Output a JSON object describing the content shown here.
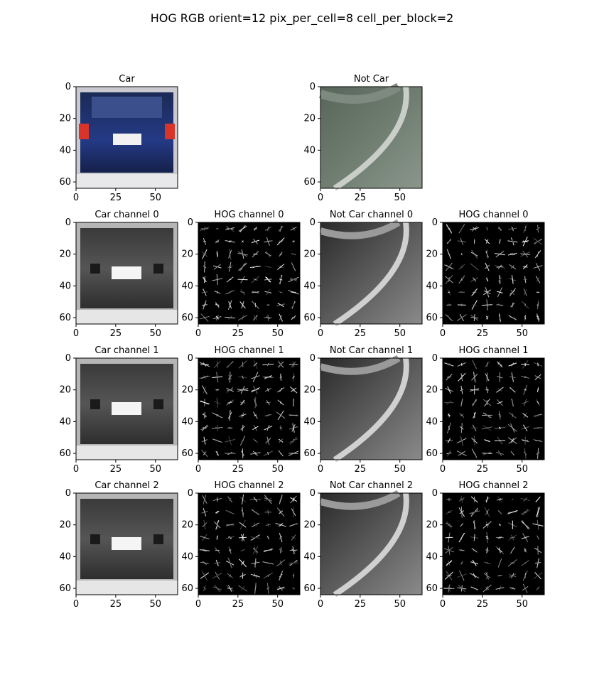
{
  "figure": {
    "suptitle": "HOG RGB orient=12 pix_per_cell=8 cell_per_block=2"
  },
  "chart_data": {
    "type": "image-grid",
    "rows": 4,
    "cols": 4,
    "image_extent": [
      0,
      64,
      0,
      64
    ],
    "xticks": [
      "0",
      "25",
      "50"
    ],
    "yticks": [
      "0",
      "20",
      "40",
      "60"
    ],
    "panels": [
      {
        "title": "Car",
        "row": 0,
        "col": 0,
        "kind": "car-rgb"
      },
      {
        "title": "Not Car",
        "row": 0,
        "col": 2,
        "kind": "notcar-rgb"
      },
      {
        "title": "Car channel 0",
        "row": 1,
        "col": 0,
        "kind": "car-gray",
        "channel": 0
      },
      {
        "title": "HOG channel 0",
        "row": 1,
        "col": 1,
        "kind": "car-hog",
        "channel": 0
      },
      {
        "title": "Not Car channel 0",
        "row": 1,
        "col": 2,
        "kind": "notcar-gray",
        "channel": 0
      },
      {
        "title": "HOG channel 0",
        "row": 1,
        "col": 3,
        "kind": "notcar-hog",
        "channel": 0
      },
      {
        "title": "Car channel 1",
        "row": 2,
        "col": 0,
        "kind": "car-gray",
        "channel": 1
      },
      {
        "title": "HOG channel 1",
        "row": 2,
        "col": 1,
        "kind": "car-hog",
        "channel": 1
      },
      {
        "title": "Not Car channel 1",
        "row": 2,
        "col": 2,
        "kind": "notcar-gray",
        "channel": 1
      },
      {
        "title": "HOG channel 1",
        "row": 2,
        "col": 3,
        "kind": "notcar-hog",
        "channel": 1
      },
      {
        "title": "Car channel 2",
        "row": 3,
        "col": 0,
        "kind": "car-gray",
        "channel": 2
      },
      {
        "title": "HOG channel 2",
        "row": 3,
        "col": 1,
        "kind": "car-hog",
        "channel": 2
      },
      {
        "title": "Not Car channel 2",
        "row": 3,
        "col": 2,
        "kind": "notcar-gray",
        "channel": 2
      },
      {
        "title": "HOG channel 2",
        "row": 3,
        "col": 3,
        "kind": "notcar-hog",
        "channel": 2
      }
    ]
  }
}
